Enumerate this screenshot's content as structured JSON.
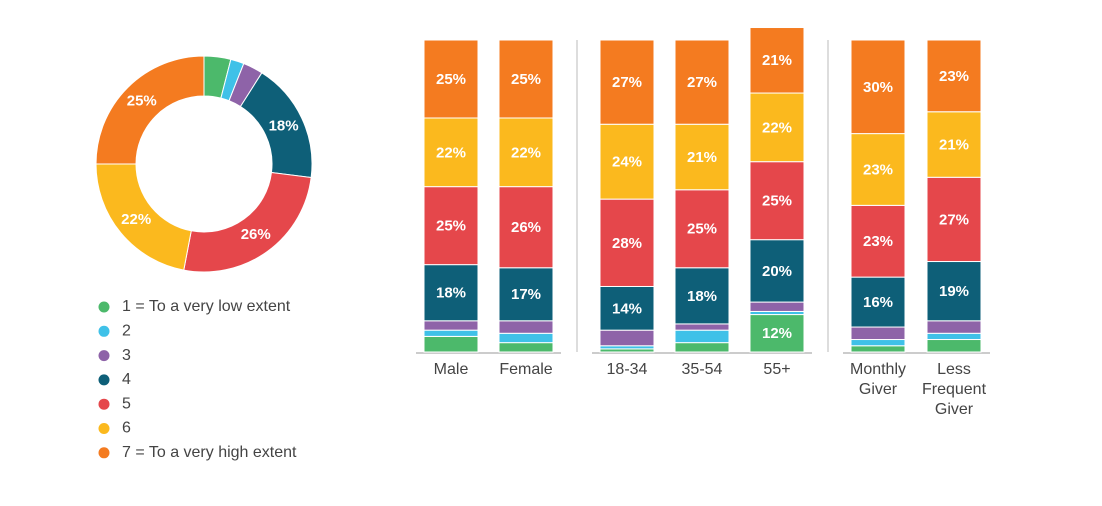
{
  "chart_data": [
    {
      "type": "pie",
      "categories": [
        "1 = To a very low extent",
        "2",
        "3",
        "4",
        "5",
        "6",
        "7 = To a very high extent"
      ],
      "values": [
        4,
        2,
        3,
        18,
        26,
        22,
        25
      ],
      "value_labels": [
        null,
        null,
        null,
        "18%",
        "26%",
        "22%",
        "25%"
      ],
      "colors": [
        "#4cb96b",
        "#3fc1e8",
        "#8e63a8",
        "#0e5f78",
        "#e5474b",
        "#fbb91e",
        "#f47b20"
      ]
    },
    {
      "type": "stacked-bar",
      "categories": [
        "Male",
        "Female",
        "18-34",
        "35-54",
        "55+",
        "Monthly Giver",
        "Less Frequent Giver"
      ],
      "ylim": [
        0,
        100
      ],
      "series": [
        {
          "color": "#4cb96b",
          "values": [
            5,
            3,
            1,
            3,
            12,
            2,
            4
          ],
          "value_labels": [
            null,
            null,
            null,
            null,
            "12%",
            null,
            null
          ]
        },
        {
          "color": "#3fc1e8",
          "values": [
            2,
            3,
            1,
            4,
            1,
            2,
            2
          ],
          "value_labels": [
            null,
            null,
            null,
            null,
            null,
            null,
            null
          ]
        },
        {
          "color": "#8e63a8",
          "values": [
            3,
            4,
            5,
            2,
            3,
            4,
            4
          ],
          "value_labels": [
            null,
            null,
            null,
            null,
            null,
            null,
            null
          ]
        },
        {
          "color": "#0e5f78",
          "values": [
            18,
            17,
            14,
            18,
            20,
            16,
            19
          ],
          "value_labels": [
            "18%",
            "17%",
            "14%",
            "18%",
            "20%",
            "16%",
            "19%"
          ]
        },
        {
          "color": "#e5474b",
          "values": [
            25,
            26,
            28,
            25,
            25,
            23,
            27
          ],
          "value_labels": [
            "25%",
            "26%",
            "28%",
            "25%",
            "25%",
            "23%",
            "27%"
          ]
        },
        {
          "color": "#fbb91e",
          "values": [
            22,
            22,
            24,
            21,
            22,
            23,
            21
          ],
          "value_labels": [
            "22%",
            "22%",
            "24%",
            "21%",
            "22%",
            "23%",
            "21%"
          ]
        },
        {
          "color": "#f47b20",
          "values": [
            25,
            25,
            27,
            27,
            21,
            30,
            23
          ],
          "value_labels": [
            "25%",
            "25%",
            "27%",
            "27%",
            "21%",
            "30%",
            "23%"
          ]
        }
      ]
    }
  ]
}
